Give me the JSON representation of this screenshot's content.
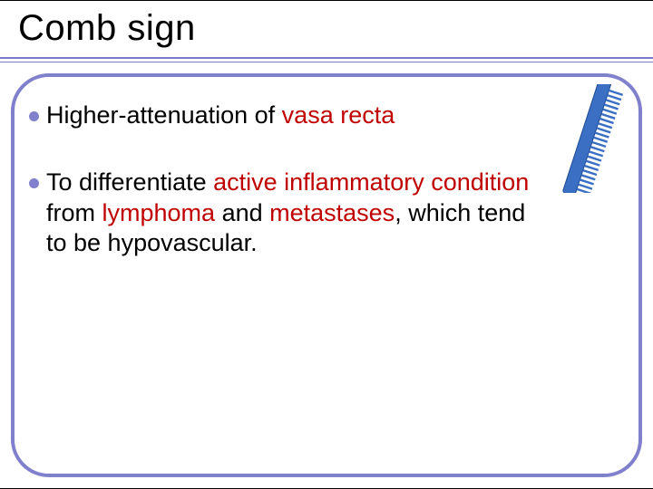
{
  "title": "Comb sign",
  "bullets": [
    {
      "pre": "Higher-attenuation of ",
      "hl1": "vasa recta",
      "mid": "",
      "hl2": "",
      "mid2": "",
      "hl3": "",
      "post": ""
    },
    {
      "pre": "To differentiate ",
      "hl1": "active inflammatory condition",
      "mid": " from ",
      "hl2": "lymphoma",
      "mid2": " and ",
      "hl3": "metastases",
      "post": ", which tend to be hypovascular."
    }
  ],
  "colors": {
    "accent": "#8080cc",
    "highlight": "#c00000",
    "text": "#000000",
    "background": "#ffffff"
  },
  "comb": {
    "body_fill": "#3a6fc4",
    "body_stroke": "#1e4a8f",
    "tooth_count": 22
  }
}
